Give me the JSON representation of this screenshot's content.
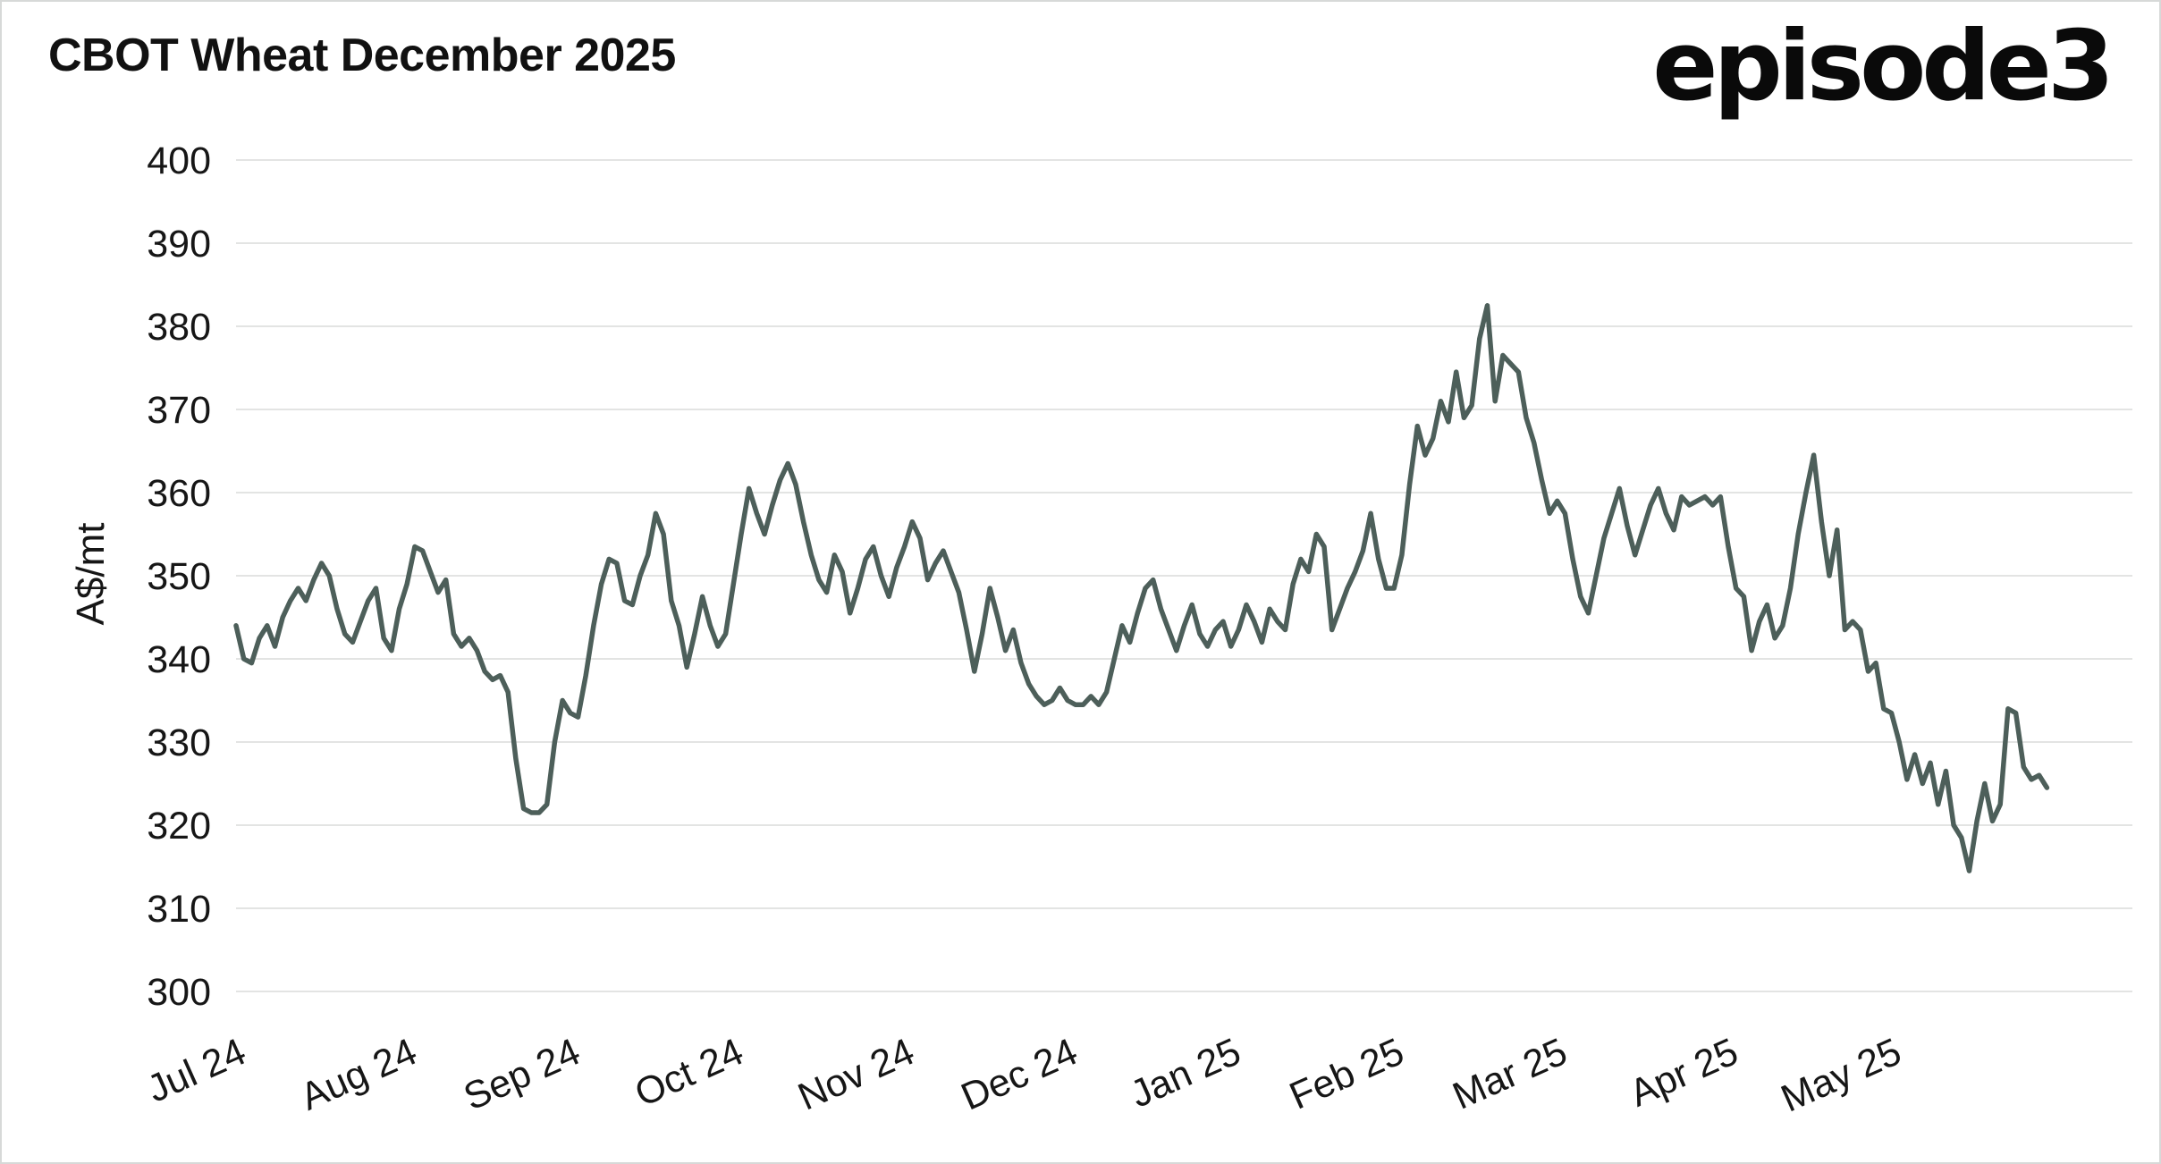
{
  "header": {
    "title": "CBOT Wheat December 2025",
    "logo_text": "episode3"
  },
  "chart_data": {
    "type": "line",
    "title": "CBOT Wheat December 2025",
    "xlabel": "",
    "ylabel": "A$/mt",
    "ylim": [
      300,
      400
    ],
    "y_ticks": [
      300,
      310,
      320,
      330,
      340,
      350,
      360,
      370,
      380,
      390,
      400
    ],
    "x_range": [
      0,
      244
    ],
    "x_ticks": [
      {
        "label": "Jul 24",
        "index": 0
      },
      {
        "label": "Aug 24",
        "index": 22
      },
      {
        "label": "Sep 24",
        "index": 43
      },
      {
        "label": "Oct 24",
        "index": 64
      },
      {
        "label": "Nov 24",
        "index": 86
      },
      {
        "label": "Dec 24",
        "index": 107
      },
      {
        "label": "Jan 25",
        "index": 128
      },
      {
        "label": "Feb 25",
        "index": 149
      },
      {
        "label": "Mar 25",
        "index": 170
      },
      {
        "label": "Apr 25",
        "index": 192
      },
      {
        "label": "May 25",
        "index": 213
      }
    ],
    "grid": "horizontal",
    "legend": "none",
    "line_color": "#4d5f5a",
    "grid_color": "#e3e4e3",
    "text_color": "#161616",
    "values": [
      344,
      340,
      339.5,
      342.5,
      344,
      341.5,
      345,
      347,
      348.5,
      347,
      349.5,
      351.5,
      350,
      346,
      343,
      342,
      344.5,
      347,
      348.5,
      342.5,
      341,
      346,
      349,
      353.5,
      353,
      350.5,
      348,
      349.5,
      343,
      341.5,
      342.5,
      341,
      338.5,
      337.5,
      338,
      336,
      328,
      322,
      321.5,
      321.5,
      322.5,
      330,
      335,
      333.5,
      333,
      338,
      344,
      349,
      352,
      351.5,
      347,
      346.5,
      350,
      352.5,
      357.5,
      355,
      347,
      344,
      339,
      343,
      347.5,
      344,
      341.5,
      343,
      349,
      355,
      360.5,
      357.5,
      355,
      358.5,
      361.5,
      363.5,
      361,
      356.5,
      352.5,
      349.5,
      348,
      352.5,
      350.5,
      345.5,
      348.5,
      352,
      353.5,
      350,
      347.5,
      351,
      353.5,
      356.5,
      354.5,
      349.5,
      351.5,
      353,
      350.5,
      348,
      343.5,
      338.5,
      343,
      348.5,
      345,
      341,
      343.5,
      339.5,
      337,
      335.5,
      334.5,
      335,
      336.5,
      335,
      334.5,
      334.5,
      335.5,
      334.5,
      336,
      340,
      344,
      342,
      345.5,
      348.5,
      349.5,
      346,
      343.5,
      341,
      344,
      346.5,
      343,
      341.5,
      343.5,
      344.5,
      341.5,
      343.5,
      346.5,
      344.5,
      342,
      346,
      344.5,
      343.5,
      349,
      352,
      350.5,
      355,
      353.5,
      343.5,
      346,
      348.5,
      350.5,
      353,
      357.5,
      352,
      348.5,
      348.5,
      352.5,
      361,
      368,
      364.5,
      366.5,
      371,
      368.5,
      374.5,
      369,
      370.5,
      378.5,
      382.5,
      371,
      376.5,
      375.5,
      374.5,
      369,
      366,
      361.5,
      357.5,
      359,
      357.5,
      352,
      347.5,
      345.5,
      350,
      354.5,
      357.5,
      360.5,
      356,
      352.5,
      355.5,
      358.5,
      360.5,
      357.5,
      355.5,
      359.5,
      358.5,
      359,
      359.5,
      358.5,
      359.5,
      353.5,
      348.5,
      347.5,
      341,
      344.5,
      346.5,
      342.5,
      344,
      348.5,
      355,
      360,
      364.5,
      356.5,
      350,
      355.5,
      343.5,
      344.5,
      343.5,
      338.5,
      339.5,
      334,
      333.5,
      330,
      325.5,
      328.5,
      325,
      327.5,
      322.5,
      326.5,
      320,
      318.5,
      314.5,
      320.5,
      325,
      320.5,
      322.5,
      334,
      333.5,
      327,
      325.5,
      326,
      324.5
    ]
  }
}
